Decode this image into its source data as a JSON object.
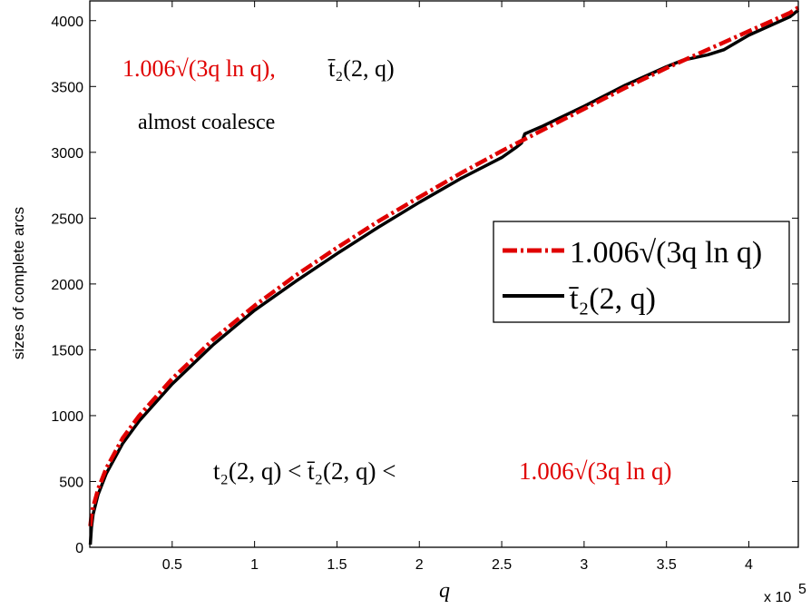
{
  "chart_data": {
    "type": "line",
    "title": "",
    "xlabel": "q",
    "ylabel": "sizes of complete arcs",
    "x_multiplier_label": "x 10",
    "x_multiplier_exp": "5",
    "xlim": [
      0,
      4.3
    ],
    "ylim": [
      0,
      4150
    ],
    "xticks": [
      0.5,
      1,
      1.5,
      2,
      2.5,
      3,
      3.5,
      4
    ],
    "yticks": [
      0,
      500,
      1000,
      1500,
      2000,
      2500,
      3000,
      3500,
      4000
    ],
    "grid": false,
    "legend_position": "right-middle",
    "series": [
      {
        "name": "1.006√(3q ln q)",
        "color": "#e00000",
        "style": "dash-dot",
        "x": [
          0.003,
          0.01,
          0.02,
          0.05,
          0.1,
          0.2,
          0.3,
          0.5,
          0.75,
          1.0,
          1.25,
          1.5,
          1.75,
          2.0,
          2.25,
          2.5,
          2.75,
          3.0,
          3.25,
          3.5,
          3.75,
          4.0,
          4.25,
          4.3
        ],
        "values": [
          160,
          240,
          305,
          440,
          600,
          830,
          1000,
          1280,
          1580,
          1835,
          2065,
          2275,
          2475,
          2660,
          2840,
          3010,
          3170,
          3330,
          3490,
          3640,
          3780,
          3920,
          4060,
          4100
        ]
      },
      {
        "name": "t̄₂(2, q)",
        "color": "#000000",
        "style": "solid",
        "x": [
          0.003,
          0.01,
          0.02,
          0.05,
          0.1,
          0.2,
          0.3,
          0.5,
          0.75,
          1.0,
          1.25,
          1.5,
          1.75,
          2.0,
          2.25,
          2.5,
          2.59,
          2.61,
          2.62,
          2.64,
          2.75,
          3.0,
          3.25,
          3.5,
          3.6,
          3.75,
          3.85,
          4.0,
          4.25,
          4.3
        ],
        "values": [
          20,
          150,
          250,
          400,
          560,
          790,
          960,
          1240,
          1540,
          1800,
          2020,
          2230,
          2430,
          2620,
          2800,
          2960,
          3040,
          3060,
          3070,
          3140,
          3200,
          3350,
          3510,
          3650,
          3700,
          3740,
          3780,
          3890,
          4030,
          4080
        ]
      }
    ],
    "annotations": {
      "top_formula_red": "1.006√(3q ln q),",
      "top_formula_black": "t̄₂(2, q)",
      "almost_coalesce": "almost coalesce",
      "inequality_black": "t₂(2, q) < t̄₂(2, q) <",
      "inequality_red": "1.006√(3q ln q)"
    }
  }
}
